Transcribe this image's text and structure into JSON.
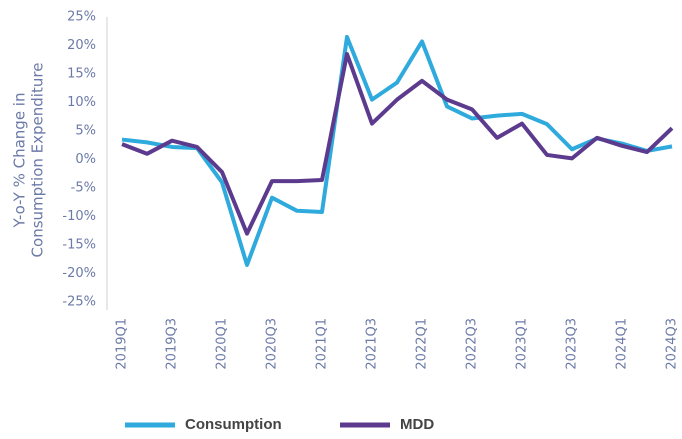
{
  "chart_data": {
    "type": "line",
    "ylabel": [
      "Y-o-Y % Change in",
      "Consumption Expenditure"
    ],
    "categories": [
      "2019Q1",
      null,
      "2019Q3",
      null,
      "2020Q1",
      null,
      "2020Q3",
      null,
      "2021Q1",
      null,
      "2021Q3",
      null,
      "2022Q1",
      null,
      "2022Q3",
      null,
      "2023Q1",
      null,
      "2023Q3",
      null,
      "2024Q1",
      null,
      "2024Q3"
    ],
    "series": [
      {
        "name": "Consumption",
        "color": "#2eaadc",
        "values": [
          3.5,
          3.0,
          2.2,
          2.0,
          -4,
          -18.5,
          -6.7,
          -9,
          -9.2,
          21.5,
          10.5,
          13.5,
          20.7,
          9.3,
          7.2,
          7.7,
          8,
          6.2,
          1.8,
          3.7,
          2.8,
          1.5,
          2.3
        ]
      },
      {
        "name": "MDD",
        "color": "#5c3a8e",
        "values": [
          2.7,
          1.0,
          3.3,
          2.2,
          -2.2,
          -13,
          -3.8,
          -3.8,
          -3.6,
          18.5,
          6.3,
          10.5,
          13.8,
          10.5,
          8.8,
          3.8,
          6.3,
          0.8,
          0.2,
          3.8,
          2.4,
          1.3,
          5.5
        ]
      }
    ],
    "ylim": [
      -25,
      25
    ],
    "yticks": [
      {
        "value": 25,
        "label": "25%"
      },
      {
        "value": 20,
        "label": "20%"
      },
      {
        "value": 15,
        "label": "15%"
      },
      {
        "value": 10,
        "label": "10%"
      },
      {
        "value": 5,
        "label": "5%"
      },
      {
        "value": 0,
        "label": "0%"
      },
      {
        "value": -5,
        "label": "-5%"
      },
      {
        "value": -10,
        "label": "-10%"
      },
      {
        "value": -15,
        "label": "-15%"
      },
      {
        "value": -20,
        "label": "-20%"
      },
      {
        "value": -25,
        "label": "-25%"
      }
    ],
    "grid": false,
    "legend": "bottom"
  }
}
